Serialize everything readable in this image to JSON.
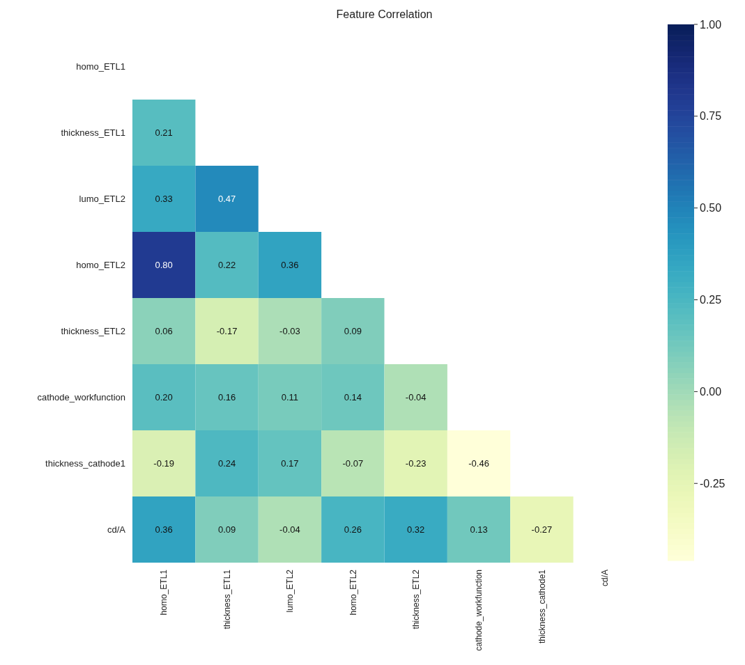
{
  "chart_data": {
    "type": "heatmap",
    "title": "Feature Correlation",
    "categories": [
      "homo_ETL1",
      "thickness_ETL1",
      "lumo_ETL2",
      "homo_ETL2",
      "thickness_ETL2",
      "cathode_workfunction",
      "thickness_cathode1",
      "cd/A"
    ],
    "y_categories": [
      "homo_ETL1",
      "thickness_ETL1",
      "lumo_ETL2",
      "homo_ETL2",
      "thickness_ETL2",
      "cathode_workfunction",
      "thickness_cathode1",
      "cd/A"
    ],
    "cells": [
      [
        null,
        null,
        null,
        null,
        null,
        null,
        null,
        null
      ],
      [
        0.21,
        null,
        null,
        null,
        null,
        null,
        null,
        null
      ],
      [
        0.33,
        0.47,
        null,
        null,
        null,
        null,
        null,
        null
      ],
      [
        0.8,
        0.22,
        0.36,
        null,
        null,
        null,
        null,
        null
      ],
      [
        0.06,
        -0.17,
        -0.03,
        0.09,
        null,
        null,
        null,
        null
      ],
      [
        0.2,
        0.16,
        0.11,
        0.14,
        -0.04,
        null,
        null,
        null
      ],
      [
        -0.19,
        0.24,
        0.17,
        -0.07,
        -0.23,
        -0.46,
        null,
        null
      ],
      [
        0.36,
        0.09,
        -0.04,
        0.26,
        0.32,
        0.13,
        -0.27,
        null
      ]
    ],
    "cell_labels": [
      [
        null,
        null,
        null,
        null,
        null,
        null,
        null,
        null
      ],
      [
        "0.21",
        null,
        null,
        null,
        null,
        null,
        null,
        null
      ],
      [
        "0.33",
        "0.47",
        null,
        null,
        null,
        null,
        null,
        null
      ],
      [
        "0.80",
        "0.22",
        "0.36",
        null,
        null,
        null,
        null,
        null
      ],
      [
        "0.06",
        "-0.17",
        "-0.03",
        "0.09",
        null,
        null,
        null,
        null
      ],
      [
        "0.20",
        "0.16",
        "0.11",
        "0.14",
        "-0.04",
        null,
        null,
        null
      ],
      [
        "-0.19",
        "0.24",
        "0.17",
        "-0.07",
        "-0.23",
        "-0.46",
        null,
        null
      ],
      [
        "0.36",
        "0.09",
        "-0.04",
        "0.26",
        "0.32",
        "0.13",
        "-0.27",
        null
      ]
    ],
    "clim": [
      -0.46,
      1
    ],
    "cticks": [
      {
        "value": -0.25,
        "label": "-0.25"
      },
      {
        "value": 0,
        "label": "0.00"
      },
      {
        "value": 0.25,
        "label": "0.25"
      },
      {
        "value": 0.5,
        "label": "0.50"
      },
      {
        "value": 0.75,
        "label": "0.75"
      },
      {
        "value": 1,
        "label": "1.00"
      }
    ]
  }
}
